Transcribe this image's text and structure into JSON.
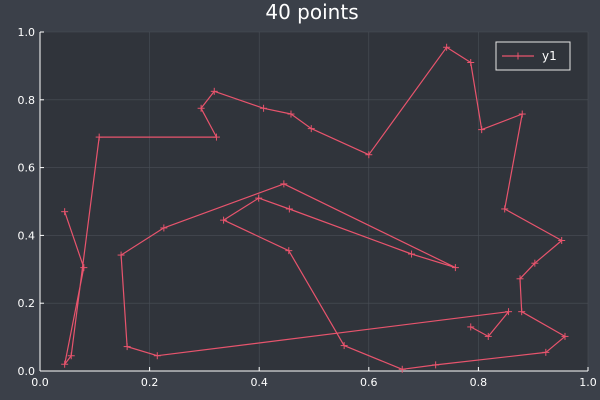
{
  "chart_data": {
    "type": "line",
    "title": "40 points",
    "xlabel": "",
    "ylabel": "",
    "xlim": [
      0.0,
      1.0
    ],
    "ylim": [
      0.0,
      1.0
    ],
    "x_ticks": [
      "0.0",
      "0.2",
      "0.4",
      "0.6",
      "0.8",
      "1.0"
    ],
    "y_ticks": [
      "0.0",
      "0.2",
      "0.4",
      "0.6",
      "0.8",
      "1.0"
    ],
    "grid": true,
    "legend_position": "top-right",
    "marker": "cross",
    "colors": {
      "background": "#3b4049",
      "plot_area": "#30343b",
      "series": "#e8546d",
      "grid": "#4a4f57",
      "axis": "#ffffff"
    },
    "series": [
      {
        "name": "y1",
        "x": [
          0.045,
          0.08,
          0.045,
          0.057,
          0.108,
          0.322,
          0.294,
          0.318,
          0.408,
          0.458,
          0.495,
          0.6,
          0.742,
          0.786,
          0.806,
          0.88,
          0.848,
          0.952,
          0.903,
          0.876,
          0.879,
          0.958,
          0.923,
          0.722,
          0.661,
          0.555,
          0.454,
          0.335,
          0.399,
          0.455,
          0.678,
          0.758,
          0.445,
          0.226,
          0.148,
          0.159,
          0.214,
          0.855,
          0.818,
          0.786
        ],
        "y": [
          0.47,
          0.305,
          0.02,
          0.045,
          0.69,
          0.69,
          0.775,
          0.825,
          0.775,
          0.758,
          0.715,
          0.638,
          0.955,
          0.91,
          0.712,
          0.758,
          0.478,
          0.385,
          0.318,
          0.272,
          0.175,
          0.102,
          0.055,
          0.018,
          0.005,
          0.075,
          0.355,
          0.445,
          0.51,
          0.478,
          0.345,
          0.305,
          0.552,
          0.422,
          0.342,
          0.072,
          0.045,
          0.175,
          0.102,
          0.13
        ]
      }
    ]
  }
}
